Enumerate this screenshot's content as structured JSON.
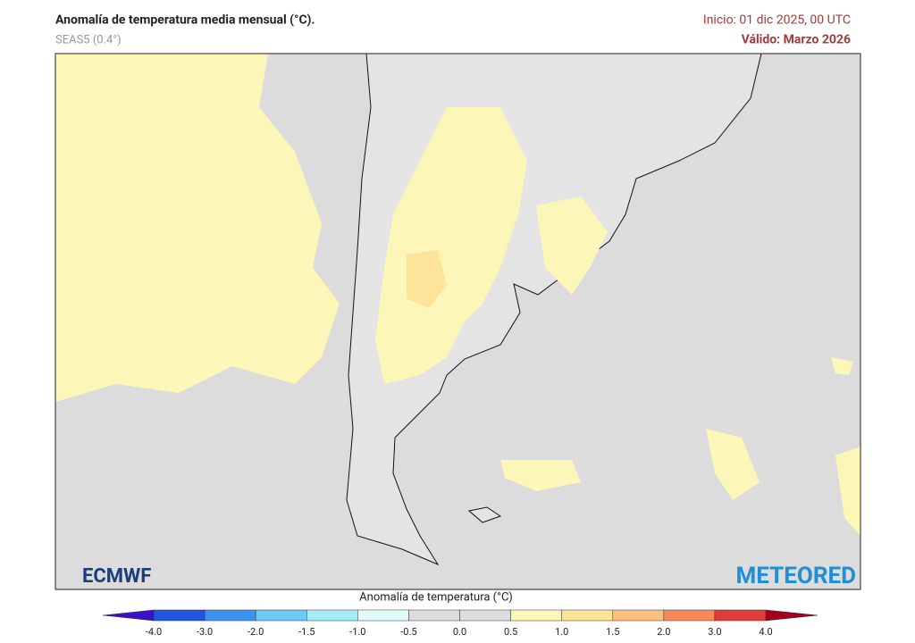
{
  "header": {
    "title": "Anomalía de temperatura media mensual (°C).",
    "model": "SEAS5 (0.4°)",
    "init": "Inicio: 01 dic 2025, 00 UTC",
    "valid": "Válido: Marzo 2026"
  },
  "logos": {
    "left": "ECMWF",
    "right": "METEORED"
  },
  "colorbar": {
    "label": "Anomalía de temperatura (°C)",
    "ticks": [
      "-4.0",
      "-3.0",
      "-2.0",
      "-1.5",
      "-1.0",
      "-0.5",
      "0.0",
      "0.5",
      "1.0",
      "1.5",
      "2.0",
      "3.0",
      "4.0"
    ],
    "colors": [
      "#3a10c8",
      "#1f55e0",
      "#3c93ef",
      "#6ccaf5",
      "#a6ecf6",
      "#e2fbfb",
      "#dcdcdc",
      "#dcdcdc",
      "#fdf6b9",
      "#fce49b",
      "#fbbf7c",
      "#f48a5c",
      "#e03c3c",
      "#a4001e"
    ]
  }
}
